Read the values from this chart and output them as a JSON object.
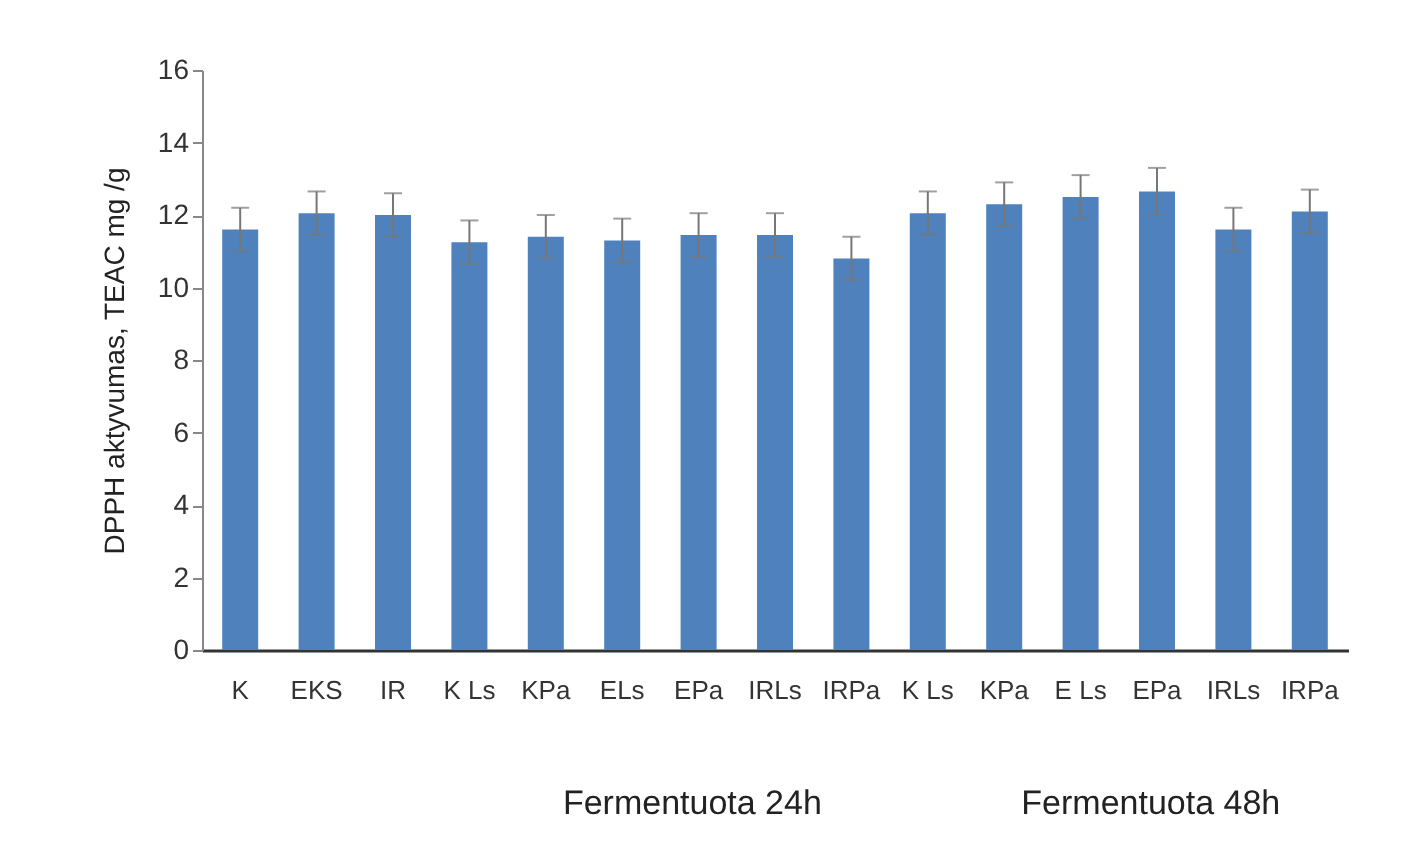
{
  "chart_data": {
    "type": "bar",
    "ylabel": "DPPH aktyvumas, TEAC mg /g",
    "categories": [
      "K",
      "EKS",
      "IR",
      "K Ls",
      "KPa",
      "ELs",
      "EPa",
      "IRLs",
      "IRPa",
      "K Ls",
      "KPa",
      "E Ls",
      "EPa",
      "IRLs",
      "IRPa"
    ],
    "values": [
      11.6,
      12.05,
      12.0,
      11.25,
      11.4,
      11.3,
      11.45,
      11.45,
      10.8,
      12.05,
      12.3,
      12.5,
      12.65,
      11.6,
      12.1
    ],
    "errors": [
      0.6,
      0.6,
      0.6,
      0.6,
      0.6,
      0.6,
      0.6,
      0.6,
      0.6,
      0.6,
      0.6,
      0.6,
      0.65,
      0.6,
      0.6
    ],
    "color": "#4f81bd",
    "ylim": [
      0,
      16
    ],
    "yticks": [
      0,
      2,
      4,
      6,
      8,
      10,
      12,
      14,
      16
    ],
    "grid": false,
    "annotations": [
      "Fermentuota 24h",
      "Fermentuota 48h"
    ]
  }
}
